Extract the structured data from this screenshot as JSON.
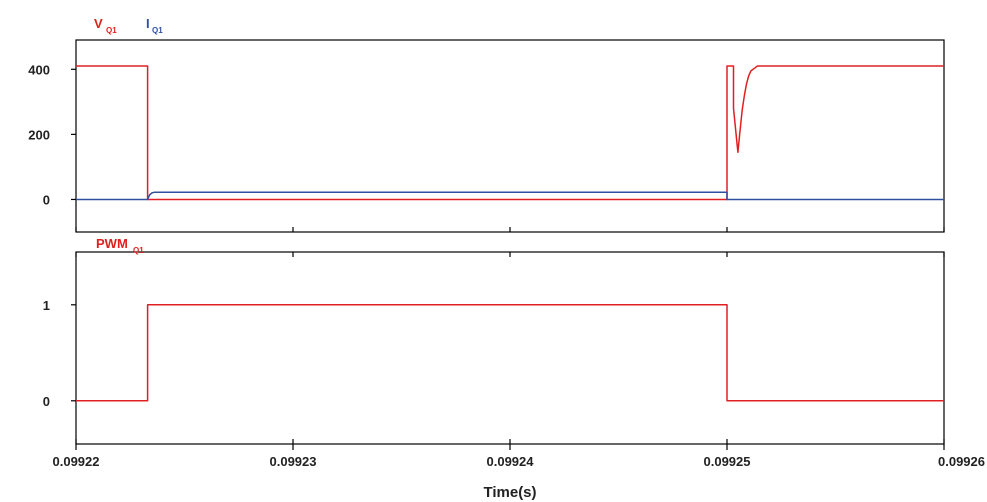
{
  "chart_data": [
    {
      "type": "line",
      "panel": "top",
      "ylim": [
        -100,
        490
      ],
      "yticks": [
        0,
        200,
        400
      ],
      "ytick_labels": [
        "0",
        "200",
        "400"
      ],
      "legend": [
        {
          "main": "V",
          "sub": "Q1",
          "color": "#e02020"
        },
        {
          "main": "I",
          "sub": "Q1",
          "color": "#3050a0"
        }
      ],
      "series": [
        {
          "name": "VQ1",
          "color": "#e02020",
          "x": [
            0.09922,
            0.0992233,
            0.0992233,
            0.09925,
            0.09925,
            0.0992503,
            0.0992503,
            0.0992505,
            0.0992506,
            0.0992507,
            0.0992508,
            0.0992509,
            0.099251,
            0.0992511,
            0.0992513,
            0.0992514,
            0.09926
          ],
          "y": [
            410,
            410,
            0,
            0,
            410,
            410,
            280,
            145,
            210,
            275,
            320,
            355,
            380,
            395,
            405,
            410,
            410
          ]
        },
        {
          "name": "IQ1",
          "color": "#3050a0",
          "x": [
            0.09922,
            0.0992233,
            0.09922335,
            0.0992234,
            0.0992235,
            0.0992236,
            0.09925,
            0.09925,
            0.09926
          ],
          "y": [
            0,
            0,
            8,
            15,
            20,
            22,
            22,
            0,
            0
          ]
        }
      ]
    },
    {
      "type": "line",
      "panel": "bottom",
      "ylim": [
        -0.45,
        1.55
      ],
      "yticks": [
        0,
        1
      ],
      "ytick_labels": [
        "0",
        "1"
      ],
      "legend": [
        {
          "main": "PWM",
          "sub": "Q1",
          "color": "#e02020"
        }
      ],
      "series": [
        {
          "name": "PWMQ1",
          "color": "#e02020",
          "x": [
            0.09922,
            0.0992233,
            0.0992233,
            0.09925,
            0.09925,
            0.09926
          ],
          "y": [
            0,
            0,
            1,
            1,
            0,
            0
          ]
        }
      ],
      "xlabel": "Time(s)",
      "xlim": [
        0.09922,
        0.09926
      ],
      "xticks": [
        0.09922,
        0.09923,
        0.09924,
        0.09925,
        0.09926
      ],
      "xtick_labels": [
        "0.09922",
        "0.09923",
        "0.09924",
        "0.09925",
        "0.09926"
      ]
    }
  ]
}
